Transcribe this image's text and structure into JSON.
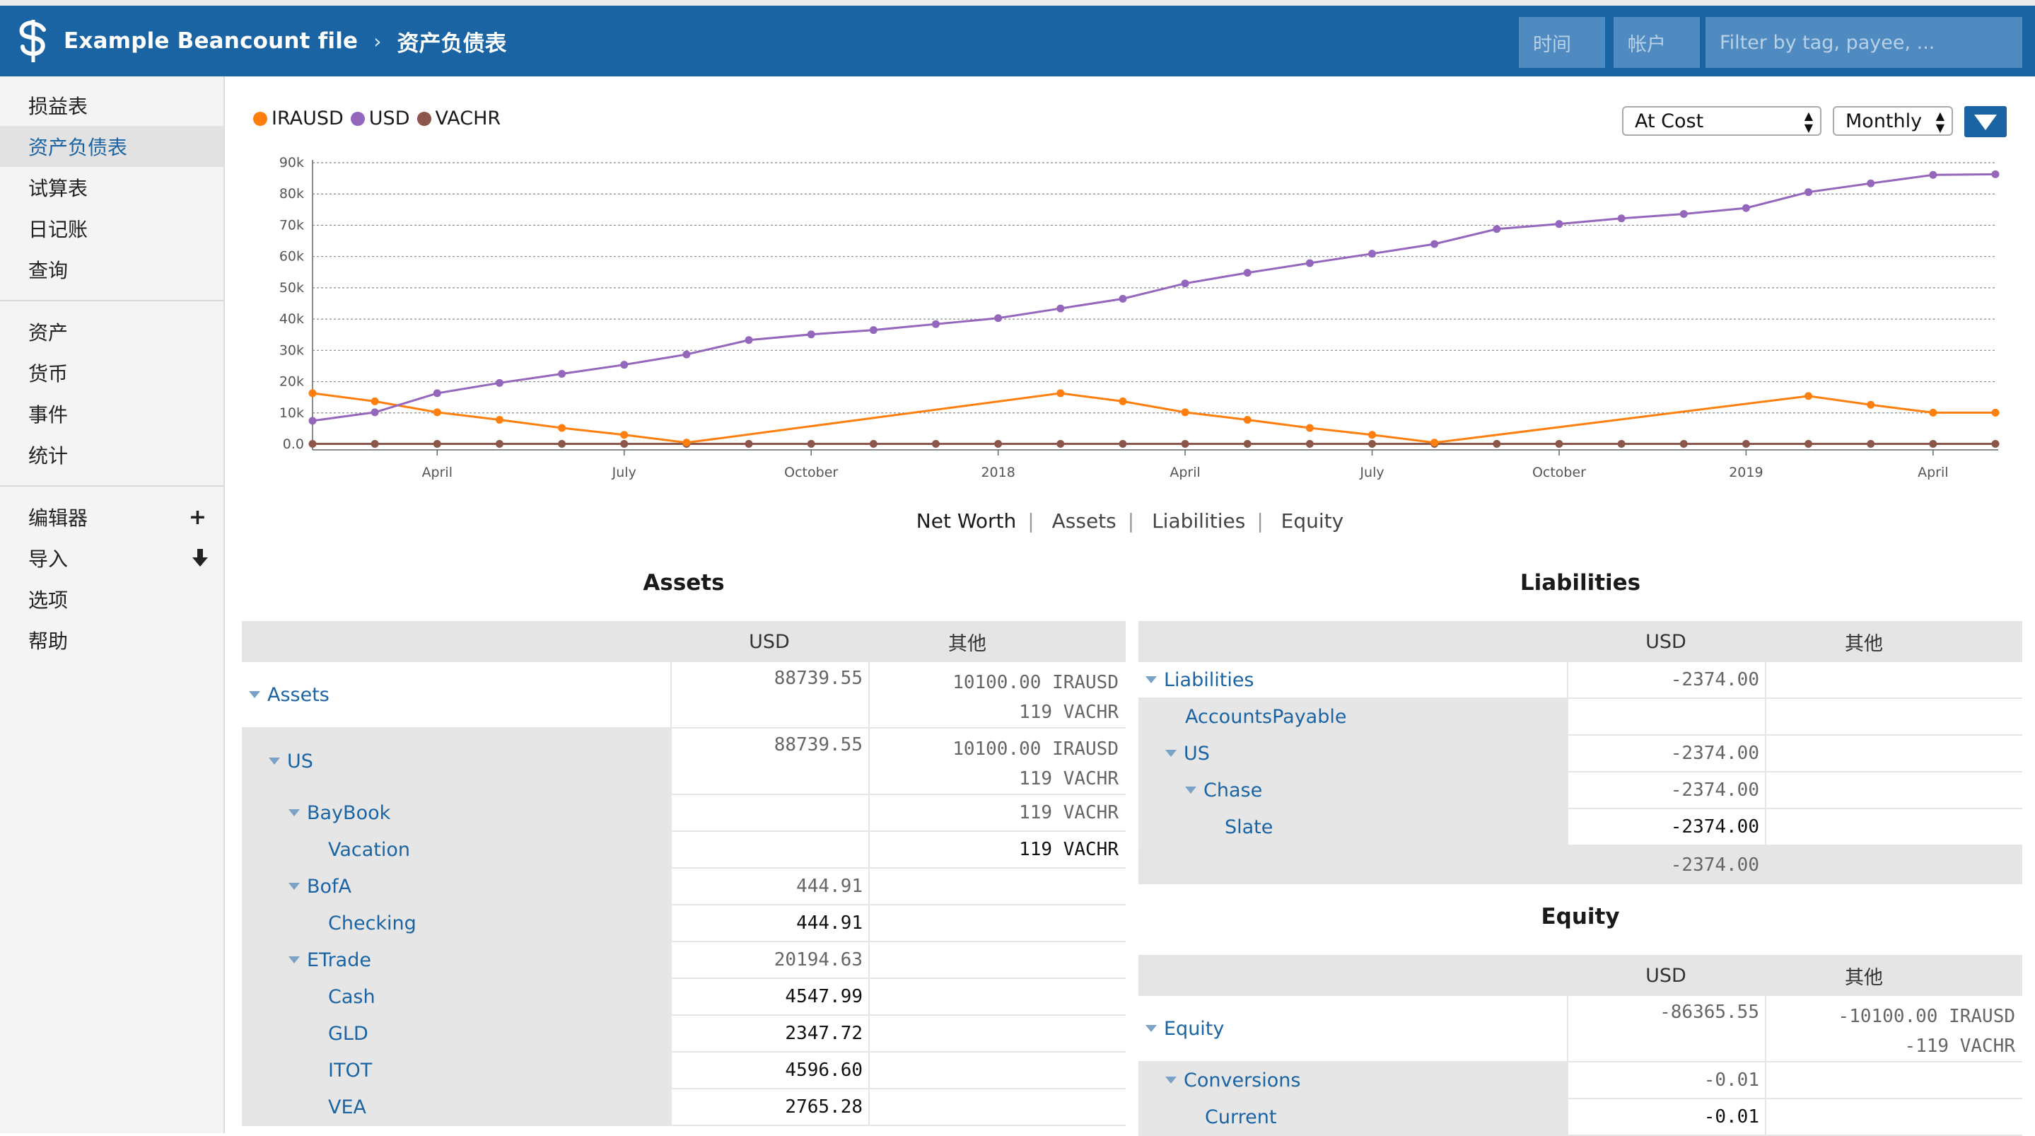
{
  "header": {
    "app_title": "Example Beancount file",
    "separator": "›",
    "page_title": "资产负债表",
    "time_placeholder": "时间",
    "account_placeholder": "帐户",
    "filter_placeholder": "Filter by tag, payee, ..."
  },
  "sidebar": {
    "group1": [
      "损益表",
      "资产负债表",
      "试算表",
      "日记账",
      "查询"
    ],
    "group2": [
      "资产",
      "货币",
      "事件",
      "统计"
    ],
    "group3": [
      "编辑器",
      "导入",
      "选项",
      "帮助"
    ],
    "active": "资产负债表"
  },
  "chart_controls": {
    "valuation": "At Cost",
    "interval": "Monthly"
  },
  "chart_tabs": [
    "Net Worth",
    "Assets",
    "Liabilities",
    "Equity"
  ],
  "chart_data": {
    "type": "line",
    "legend": [
      "IRAUSD",
      "USD",
      "VACHR"
    ],
    "colors": {
      "IRAUSD": "#ff7f0e",
      "USD": "#9467bd",
      "VACHR": "#8c564b"
    },
    "y_ticks": [
      "90k",
      "80k",
      "70k",
      "60k",
      "50k",
      "40k",
      "30k",
      "20k",
      "10k",
      "0.0"
    ],
    "ylim": [
      0,
      90000
    ],
    "x_ticks": [
      {
        "label": "April",
        "idx": 2
      },
      {
        "label": "July",
        "idx": 5
      },
      {
        "label": "October",
        "idx": 8
      },
      {
        "label": "2018",
        "idx": 11
      },
      {
        "label": "April",
        "idx": 14
      },
      {
        "label": "July",
        "idx": 17
      },
      {
        "label": "October",
        "idx": 20
      },
      {
        "label": "2019",
        "idx": 23
      },
      {
        "label": "April",
        "idx": 26
      }
    ],
    "series": [
      {
        "name": "USD",
        "values": [
          7500,
          10200,
          16300,
          19600,
          22500,
          25400,
          28700,
          33300,
          35100,
          36500,
          38400,
          40300,
          43400,
          46500,
          51400,
          54800,
          57900,
          60900,
          64000,
          68800,
          70400,
          72200,
          73600,
          75500,
          80600,
          83400,
          86100,
          86300
        ]
      },
      {
        "name": "IRAUSD",
        "values": [
          16300,
          13700,
          10200,
          7800,
          5200,
          3000,
          500,
          null,
          null,
          null,
          null,
          null,
          16300,
          13700,
          10200,
          7800,
          5200,
          3000,
          500,
          null,
          null,
          null,
          null,
          null,
          15400,
          12600,
          10100,
          10100
        ]
      },
      {
        "name": "VACHR",
        "values": [
          119,
          119,
          119,
          119,
          119,
          119,
          119,
          119,
          119,
          119,
          119,
          119,
          119,
          119,
          119,
          119,
          119,
          119,
          119,
          119,
          119,
          119,
          119,
          119,
          119,
          119,
          119,
          119
        ]
      }
    ]
  },
  "assets": {
    "title": "Assets",
    "col_usd": "USD",
    "col_other": "其他",
    "rows": [
      {
        "name": "Assets",
        "level": 0,
        "tri": true,
        "usd": "88739.55",
        "other": [
          "10100.00 IRAUSD",
          "119 VACHR"
        ]
      },
      {
        "name": "US",
        "level": 1,
        "tri": true,
        "usd": "88739.55",
        "other": [
          "10100.00 IRAUSD",
          "119 VACHR"
        ]
      },
      {
        "name": "BayBook",
        "level": 2,
        "tri": true,
        "usd": "",
        "other": [
          "119 VACHR"
        ]
      },
      {
        "name": "Vacation",
        "level": 3,
        "tri": false,
        "usd": "",
        "other": [
          "119 VACHR"
        ],
        "leaf": true
      },
      {
        "name": "BofA",
        "level": 2,
        "tri": true,
        "usd": "444.91",
        "other": []
      },
      {
        "name": "Checking",
        "level": 3,
        "tri": false,
        "usd": "444.91",
        "other": [],
        "leaf": true
      },
      {
        "name": "ETrade",
        "level": 2,
        "tri": true,
        "usd": "20194.63",
        "other": []
      },
      {
        "name": "Cash",
        "level": 3,
        "tri": false,
        "usd": "4547.99",
        "other": [],
        "leaf": true
      },
      {
        "name": "GLD",
        "level": 3,
        "tri": false,
        "usd": "2347.72",
        "other": [],
        "leaf": true
      },
      {
        "name": "ITOT",
        "level": 3,
        "tri": false,
        "usd": "4596.60",
        "other": [],
        "leaf": true
      },
      {
        "name": "VEA",
        "level": 3,
        "tri": false,
        "usd": "2765.28",
        "other": [],
        "leaf": true
      }
    ]
  },
  "liabilities": {
    "title": "Liabilities",
    "col_usd": "USD",
    "col_other": "其他",
    "rows": [
      {
        "name": "Liabilities",
        "level": 0,
        "tri": true,
        "usd": "-2374.00",
        "other": []
      },
      {
        "name": "AccountsPayable",
        "level": 1,
        "tri": false,
        "usd": "",
        "other": []
      },
      {
        "name": "US",
        "level": 1,
        "tri": true,
        "usd": "-2374.00",
        "other": []
      },
      {
        "name": "Chase",
        "level": 2,
        "tri": true,
        "usd": "-2374.00",
        "other": []
      },
      {
        "name": "Slate",
        "level": 3,
        "tri": false,
        "usd": "-2374.00",
        "other": [],
        "leaf": true
      }
    ],
    "total": "-2374.00"
  },
  "equity": {
    "title": "Equity",
    "col_usd": "USD",
    "col_other": "其他",
    "rows": [
      {
        "name": "Equity",
        "level": 0,
        "tri": true,
        "usd": "-86365.55",
        "other": [
          "-10100.00 IRAUSD",
          "-119 VACHR"
        ]
      },
      {
        "name": "Conversions",
        "level": 1,
        "tri": true,
        "usd": "-0.01",
        "other": []
      },
      {
        "name": "Current",
        "level": 2,
        "tri": false,
        "usd": "-0.01",
        "other": [],
        "leaf": true
      }
    ]
  }
}
